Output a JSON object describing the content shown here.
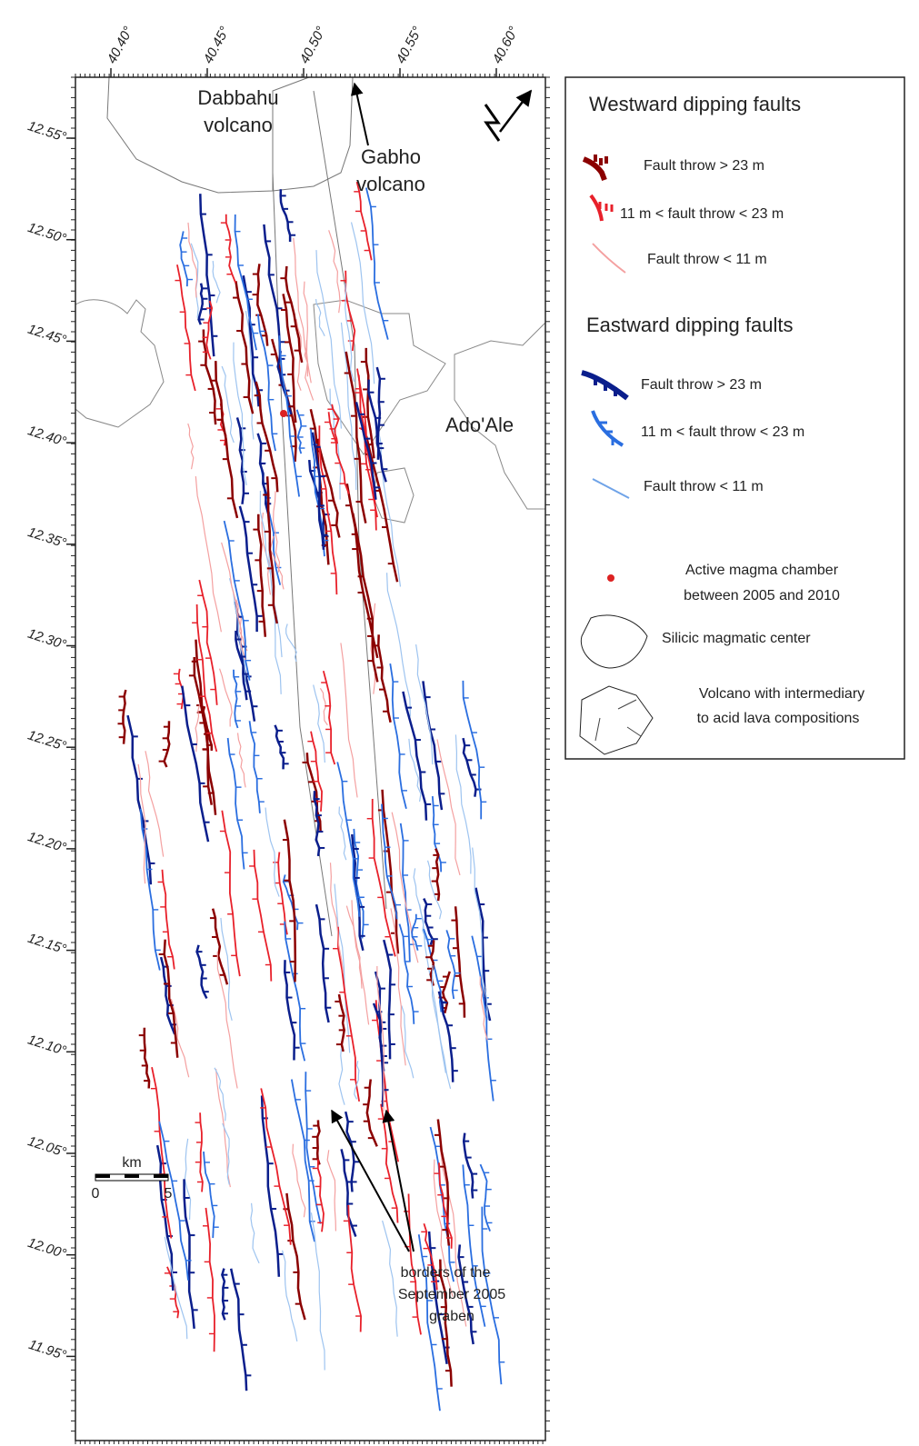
{
  "map": {
    "lon_ticks": [
      {
        "value": 40.4,
        "label": "40.40°"
      },
      {
        "value": 40.45,
        "label": "40.45°"
      },
      {
        "value": 40.5,
        "label": "40.50°"
      },
      {
        "value": 40.55,
        "label": "40.55°"
      },
      {
        "value": 40.6,
        "label": "40.60°"
      }
    ],
    "lat_ticks": [
      {
        "value": 12.55,
        "label": "12.55°"
      },
      {
        "value": 12.5,
        "label": "12.50°"
      },
      {
        "value": 12.45,
        "label": "12.45°"
      },
      {
        "value": 12.4,
        "label": "12.40°"
      },
      {
        "value": 12.35,
        "label": "12.35°"
      },
      {
        "value": 12.3,
        "label": "12.30°"
      },
      {
        "value": 12.25,
        "label": "12.25°"
      },
      {
        "value": 12.2,
        "label": "12.20°"
      },
      {
        "value": 12.15,
        "label": "12.15°"
      },
      {
        "value": 12.1,
        "label": "12.10°"
      },
      {
        "value": 12.05,
        "label": "12.05°"
      },
      {
        "value": 12.0,
        "label": "12.00°"
      },
      {
        "value": 11.95,
        "label": "11.95°"
      }
    ],
    "places": {
      "dabbahu": [
        "Dabbahu",
        "volcano"
      ],
      "gabho": [
        "Gabho",
        "volcano"
      ],
      "ado_ale": "Ado'Ale"
    },
    "scale_bar": {
      "unit": "km",
      "labels": [
        0,
        5
      ]
    },
    "annotation": [
      "borders of the",
      "September 2005",
      "graben"
    ]
  },
  "legend": {
    "west_title": "Westward dipping faults",
    "west_items": [
      "Fault throw > 23 m",
      "11 m < fault throw < 23 m",
      "Fault throw < 11 m"
    ],
    "east_title": "Eastward dipping faults",
    "east_items": [
      "Fault throw > 23 m",
      "11 m < fault throw < 23 m",
      "Fault throw < 11 m"
    ],
    "magma": [
      "Active magma chamber",
      "between 2005 and 2010"
    ],
    "silicic": "Silicic magmatic center",
    "volcano": [
      "Volcano with intermediary",
      "to acid lava compositions"
    ]
  }
}
